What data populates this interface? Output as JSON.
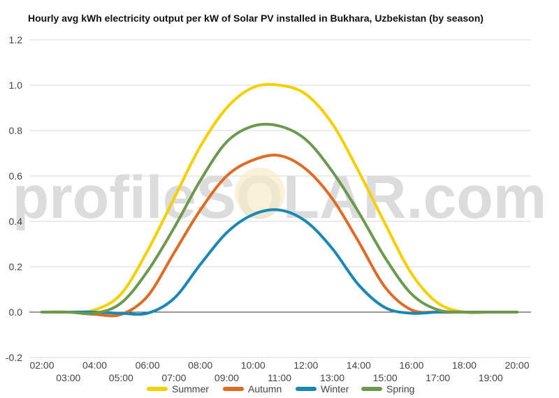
{
  "title": "Hourly avg kWh electricity output per kW of Solar PV installed in Bukhara, Uzbekistan (by season)",
  "watermark": "profileSOLAR.com",
  "chart_data": {
    "type": "line",
    "title": "Hourly avg kWh electricity output per kW of Solar PV installed in Bukhara, Uzbekistan (by season)",
    "categories": [
      "02:00",
      "03:00",
      "04:00",
      "05:00",
      "06:00",
      "07:00",
      "08:00",
      "09:00",
      "10:00",
      "11:00",
      "12:00",
      "13:00",
      "14:00",
      "15:00",
      "16:00",
      "17:00",
      "18:00",
      "19:00",
      "20:00"
    ],
    "ylim": [
      -0.2,
      1.2
    ],
    "yticks": [
      "1.2",
      "1.0",
      "0.8",
      "0.6",
      "0.4",
      "0.2",
      "0.0",
      "-0.2"
    ],
    "grid": true,
    "legend_position": "bottom",
    "series": [
      {
        "name": "Summer",
        "color": "#f5d000",
        "values": [
          0,
          0,
          0.01,
          0.08,
          0.27,
          0.5,
          0.73,
          0.9,
          0.99,
          1.0,
          0.96,
          0.83,
          0.62,
          0.39,
          0.17,
          0.04,
          0.0,
          0,
          0
        ]
      },
      {
        "name": "Autumn",
        "color": "#e06b25",
        "values": [
          0,
          0,
          -0.01,
          -0.01,
          0.07,
          0.26,
          0.45,
          0.6,
          0.67,
          0.69,
          0.63,
          0.5,
          0.31,
          0.11,
          0.01,
          0.0,
          0,
          0,
          0
        ]
      },
      {
        "name": "Winter",
        "color": "#1a87b5",
        "values": [
          0,
          0,
          0,
          -0.005,
          -0.005,
          0.06,
          0.21,
          0.35,
          0.43,
          0.45,
          0.4,
          0.28,
          0.12,
          0.02,
          -0.005,
          0,
          0,
          0,
          0
        ]
      },
      {
        "name": "Spring",
        "color": "#6b9a4e",
        "values": [
          0,
          0,
          -0.005,
          0.04,
          0.18,
          0.37,
          0.58,
          0.75,
          0.82,
          0.82,
          0.76,
          0.62,
          0.44,
          0.24,
          0.08,
          0.01,
          0,
          0,
          0
        ]
      }
    ]
  }
}
